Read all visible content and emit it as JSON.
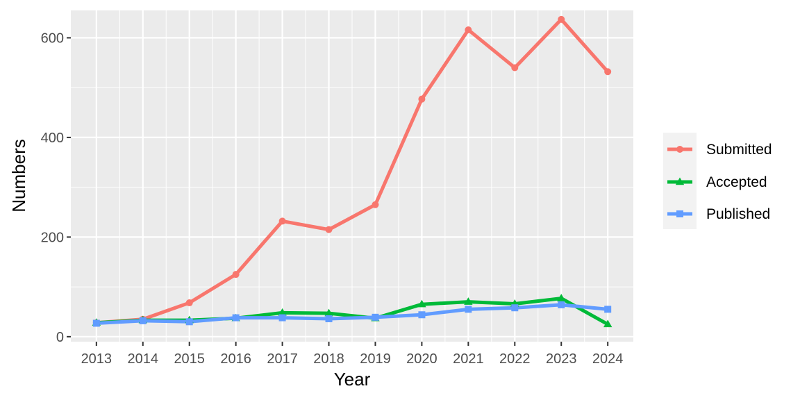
{
  "chart_data": {
    "type": "line",
    "xlabel": "Year",
    "ylabel": "Numbers",
    "x": [
      2013,
      2014,
      2015,
      2016,
      2017,
      2018,
      2019,
      2020,
      2021,
      2022,
      2023,
      2024
    ],
    "x_tick_labels": [
      "2013",
      "2014",
      "2015",
      "2016",
      "2017",
      "2018",
      "2019",
      "2020",
      "2021",
      "2022",
      "2023",
      "2024"
    ],
    "ylim": [
      -10,
      655
    ],
    "y_ticks": [
      0,
      200,
      400,
      600
    ],
    "y_tick_labels": [
      "0",
      "200",
      "400",
      "600"
    ],
    "grid": true,
    "legend_position": "right",
    "series": [
      {
        "name": "Submitted",
        "color": "#F8766D",
        "marker": "circle",
        "values": [
          28,
          35,
          68,
          125,
          232,
          215,
          265,
          477,
          616,
          540,
          637,
          532
        ]
      },
      {
        "name": "Accepted",
        "color": "#00BA38",
        "marker": "triangle",
        "values": [
          28,
          33,
          33,
          37,
          48,
          47,
          37,
          65,
          70,
          66,
          77,
          25
        ]
      },
      {
        "name": "Published",
        "color": "#619CFF",
        "marker": "square",
        "values": [
          27,
          32,
          30,
          38,
          38,
          36,
          39,
          44,
          55,
          58,
          64,
          55
        ]
      }
    ]
  }
}
